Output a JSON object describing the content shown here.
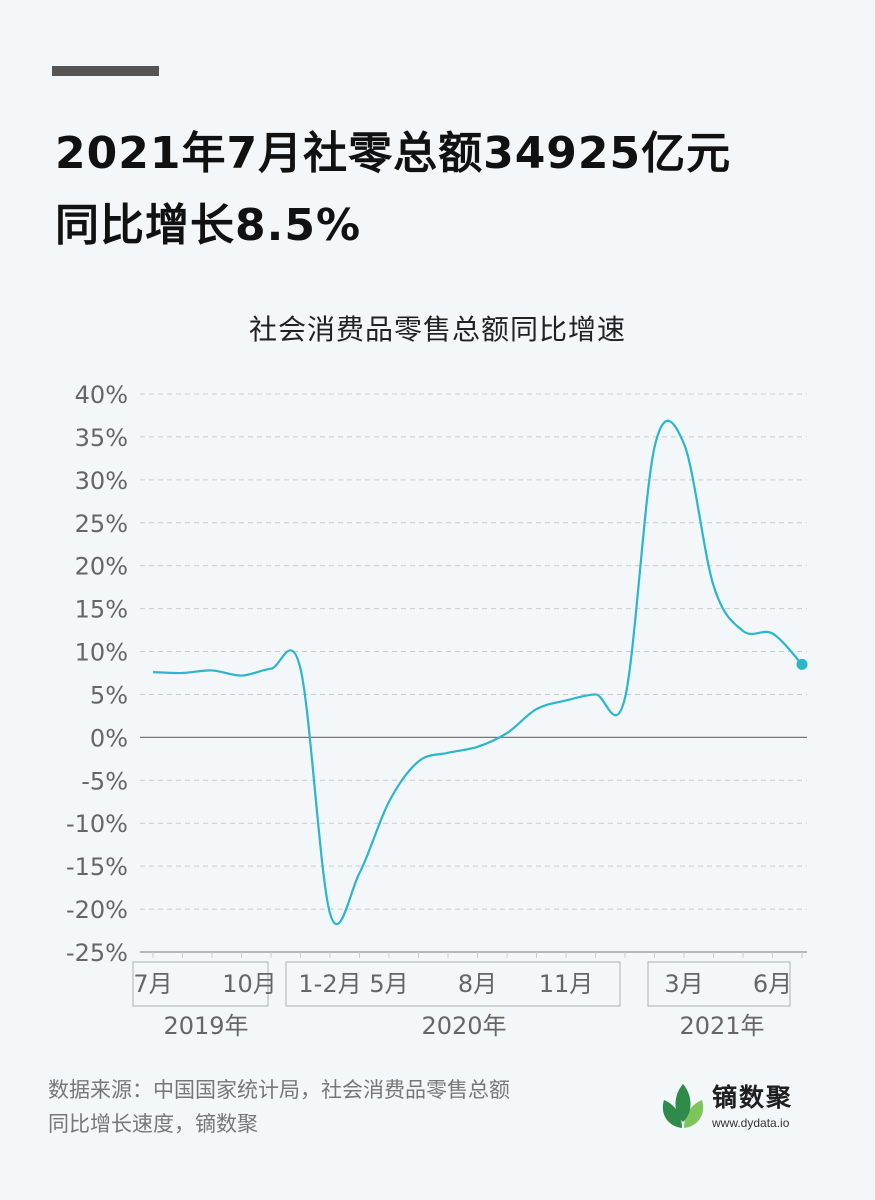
{
  "headline": [
    "2021年7月社零总额34925亿元",
    "同比增长8.5%"
  ],
  "source": [
    "数据来源：中国国家统计局，社会消费品零售总额",
    "同比增长速度，镝数聚"
  ],
  "logo": {
    "name": "镝数聚",
    "url": "www.dydata.io"
  },
  "colors": {
    "line": "#2bb6cc",
    "grid": "#c7ccd1",
    "zero": "#777777",
    "tick": "#666666",
    "logo_dark": "#2e8b4a",
    "logo_light": "#7dc45a"
  },
  "chart_data": {
    "type": "line",
    "title": "社会消费品零售总额同比增速",
    "y_ticks": [
      40,
      35,
      30,
      25,
      20,
      15,
      10,
      5,
      0,
      -5,
      -10,
      -15,
      -20,
      -25
    ],
    "y_tick_labels": [
      "40%",
      "35%",
      "30%",
      "25%",
      "20%",
      "15%",
      "10%",
      "5%",
      "0%",
      "-5%",
      "-10%",
      "-15%",
      "-20%",
      "-25%"
    ],
    "ylim": [
      -25,
      40
    ],
    "grid": true,
    "x_months": [
      "2019-07",
      "2019-08",
      "2019-09",
      "2019-10",
      "2019-11",
      "2019-12",
      "2020-01-02",
      "2020-03",
      "2020-04",
      "2020-05",
      "2020-06",
      "2020-07",
      "2020-08",
      "2020-09",
      "2020-10",
      "2020-11",
      "2020-12",
      "2021-01-02",
      "2021-03",
      "2021-04",
      "2021-05",
      "2021-06",
      "2021-07"
    ],
    "x_tick_labels": [
      "7月",
      "10月",
      "1-2月",
      "5月",
      "8月",
      "11月",
      "3月",
      "6月"
    ],
    "year_labels": [
      "2019年",
      "2020年",
      "2021年"
    ],
    "series": [
      {
        "values": [
          7.6,
          7.5,
          7.8,
          7.2,
          8.0,
          8.0,
          -20.5,
          -15.8,
          -7.5,
          -2.8,
          -1.8,
          -1.1,
          0.5,
          3.3,
          4.3,
          5.0,
          4.6,
          33.8,
          34.2,
          17.7,
          12.4,
          12.1,
          8.5
        ]
      }
    ]
  }
}
